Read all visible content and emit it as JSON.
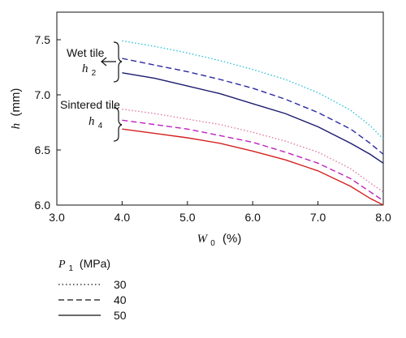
{
  "chart_data": {
    "type": "line",
    "xlabel": "W",
    "xlabel_sub": "0",
    "xlabel_unit": "(%)",
    "ylabel": "h",
    "ylabel_unit": "(mm)",
    "xlim": [
      3.0,
      8.0
    ],
    "ylim": [
      6.0,
      7.75
    ],
    "xticks": [
      3.0,
      4.0,
      5.0,
      6.0,
      7.0,
      8.0
    ],
    "xtick_labels": [
      "3.0",
      "4.0",
      "5.0",
      "6.0",
      "7.0",
      "8.0"
    ],
    "yticks": [
      6.0,
      6.5,
      7.0,
      7.5
    ],
    "ytick_labels": [
      "6.0",
      "6.5",
      "7.0",
      "7.5"
    ],
    "grid": false,
    "annotations": [
      {
        "text": "Wet tile",
        "symbol": "h",
        "symbol_sub": "2"
      },
      {
        "text": "Sintered tile",
        "symbol": "h",
        "symbol_sub": "4"
      }
    ],
    "legend": {
      "title": "P",
      "title_sub": "1",
      "title_unit": "(MPa)",
      "entries": [
        "30",
        "40",
        "50"
      ]
    },
    "series": [
      {
        "name": "30",
        "group": "Wet tile",
        "color": "#2ec4d6",
        "dash": "dotted",
        "x": [
          4.0,
          4.5,
          5.0,
          5.5,
          6.0,
          6.5,
          7.0,
          7.5,
          7.8,
          8.0
        ],
        "y": [
          7.49,
          7.44,
          7.38,
          7.31,
          7.23,
          7.14,
          7.02,
          6.86,
          6.72,
          6.6
        ]
      },
      {
        "name": "40",
        "group": "Wet tile",
        "color": "#2a2aa0",
        "dash": "dashed",
        "x": [
          4.0,
          4.5,
          5.0,
          5.5,
          6.0,
          6.5,
          7.0,
          7.5,
          7.8,
          8.0
        ],
        "y": [
          7.33,
          7.27,
          7.21,
          7.14,
          7.06,
          6.96,
          6.84,
          6.69,
          6.56,
          6.46
        ]
      },
      {
        "name": "50",
        "group": "Wet tile",
        "color": "#1a1a6e",
        "dash": "solid",
        "x": [
          4.0,
          4.5,
          5.0,
          5.5,
          6.0,
          6.5,
          7.0,
          7.5,
          7.8,
          8.0
        ],
        "y": [
          7.2,
          7.15,
          7.08,
          7.01,
          6.92,
          6.83,
          6.71,
          6.56,
          6.46,
          6.38
        ]
      },
      {
        "name": "30",
        "group": "Sintered tile",
        "color": "#e07aa8",
        "dash": "dotted",
        "x": [
          4.0,
          4.5,
          5.0,
          5.5,
          6.0,
          6.5,
          7.0,
          7.5,
          7.8,
          8.0
        ],
        "y": [
          6.87,
          6.83,
          6.78,
          6.73,
          6.66,
          6.58,
          6.48,
          6.33,
          6.2,
          6.12
        ]
      },
      {
        "name": "40",
        "group": "Sintered tile",
        "color": "#c020c0",
        "dash": "dashed",
        "x": [
          4.0,
          4.5,
          5.0,
          5.5,
          6.0,
          6.5,
          7.0,
          7.5,
          7.8,
          8.0
        ],
        "y": [
          6.77,
          6.73,
          6.69,
          6.63,
          6.57,
          6.48,
          6.38,
          6.24,
          6.12,
          6.04
        ]
      },
      {
        "name": "50",
        "group": "Sintered tile",
        "color": "#d42020",
        "dash": "solid",
        "x": [
          4.0,
          4.5,
          5.0,
          5.5,
          6.0,
          6.5,
          7.0,
          7.5,
          7.8,
          8.0
        ],
        "y": [
          6.69,
          6.65,
          6.61,
          6.56,
          6.49,
          6.41,
          6.31,
          6.17,
          6.06,
          6.0
        ]
      }
    ]
  }
}
